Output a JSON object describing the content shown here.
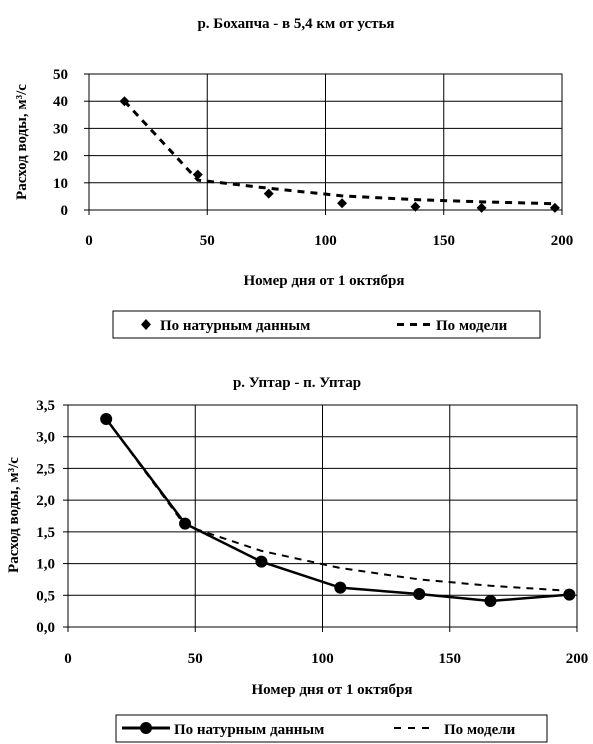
{
  "chart_data": [
    {
      "type": "scatter",
      "title": "р. Бохапча - в 5,4 км от устья",
      "xlabel": "Номер дня от 1 октября",
      "ylabel": "Расход воды, м³/с",
      "xlim": [
        0,
        200
      ],
      "ylim": [
        0,
        50
      ],
      "xticks": [
        "0",
        "50",
        "100",
        "150",
        "200"
      ],
      "yticks": [
        "0",
        "10",
        "20",
        "30",
        "40",
        "50"
      ],
      "grid": "vertical and horizontal",
      "legend_position": "bottom",
      "series": [
        {
          "name": "По натурным данным",
          "style": "diamond-markers",
          "x": [
            15,
            46,
            76,
            107,
            138,
            166,
            197
          ],
          "y": [
            40,
            13,
            6,
            2.5,
            1.2,
            0.8,
            0.8
          ]
        },
        {
          "name": "По модели",
          "style": "dashed",
          "x": [
            15,
            46,
            76,
            107,
            138,
            166,
            197
          ],
          "y": [
            40,
            11,
            8,
            5.2,
            3.8,
            3,
            2.3
          ]
        }
      ]
    },
    {
      "type": "line",
      "title": "р. Уптар - п. Уптар",
      "xlabel": "Номер дня от 1 октября",
      "ylabel": "Расход воды, м³/с",
      "xlim": [
        0,
        200
      ],
      "ylim": [
        0,
        3.5
      ],
      "xticks": [
        "0",
        "50",
        "100",
        "150",
        "200"
      ],
      "yticks": [
        "0,0",
        "0,5",
        "1,0",
        "1,5",
        "2,0",
        "2,5",
        "3,0",
        "3,5"
      ],
      "grid": "vertical and horizontal",
      "legend_position": "bottom",
      "series": [
        {
          "name": "По натурным данным",
          "style": "solid-circle-markers",
          "x": [
            15,
            46,
            76,
            107,
            138,
            166,
            197
          ],
          "y": [
            3.28,
            1.63,
            1.03,
            0.62,
            0.52,
            0.41,
            0.51
          ]
        },
        {
          "name": "По модели",
          "style": "dashed",
          "x": [
            15,
            46,
            76,
            107,
            138,
            166,
            197
          ],
          "y": [
            3.28,
            1.6,
            1.2,
            0.93,
            0.75,
            0.65,
            0.57
          ]
        }
      ]
    }
  ],
  "colors": {
    "ink": "#000000",
    "grid": "#000000",
    "background": "#ffffff"
  }
}
